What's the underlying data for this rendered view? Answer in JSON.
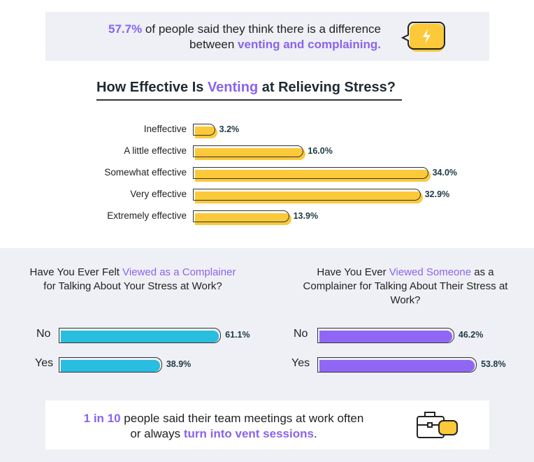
{
  "top_callout": {
    "highlight": "57.7%",
    "text1": " of people said they think there is a difference between ",
    "highlight2": "venting and complaining."
  },
  "bottom_callout": {
    "highlight": "1 in 10",
    "text1": " people said their team meetings at work often or always ",
    "highlight2": "turn into vent sessions",
    "text2": "."
  },
  "colors": {
    "yellow": "#fbc93a",
    "blue": "#29bde0",
    "purple": "#9067f5",
    "accent": "#8a63ee"
  },
  "chart_data": [
    {
      "type": "bar",
      "orientation": "horizontal",
      "title_parts": [
        "How Effective Is ",
        "Venting",
        " at Relieving Stress?"
      ],
      "categories": [
        "Ineffective",
        "A little effective",
        "Somewhat effective",
        "Very effective",
        "Extremely effective"
      ],
      "values": [
        3.2,
        16.0,
        34.0,
        32.9,
        13.9
      ],
      "labels": [
        "3.2%",
        "16.0%",
        "34.0%",
        "32.9%",
        "13.9%"
      ],
      "unit": "%"
    },
    {
      "type": "bar",
      "orientation": "horizontal",
      "title_parts": [
        "Have You Ever Felt ",
        "Viewed as a Complainer",
        " for Talking About Your Stress at Work?"
      ],
      "categories": [
        "No",
        "Yes"
      ],
      "values": [
        61.1,
        38.9
      ],
      "labels": [
        "61.1%",
        "38.9%"
      ],
      "unit": "%"
    },
    {
      "type": "bar",
      "orientation": "horizontal",
      "title_parts": [
        "Have You Ever ",
        "Viewed Someone",
        " as a Complainer for Talking About Their Stress at Work?"
      ],
      "categories": [
        "No",
        "Yes"
      ],
      "values": [
        46.2,
        53.8
      ],
      "labels": [
        "46.2%",
        "53.8%"
      ],
      "unit": "%"
    }
  ]
}
